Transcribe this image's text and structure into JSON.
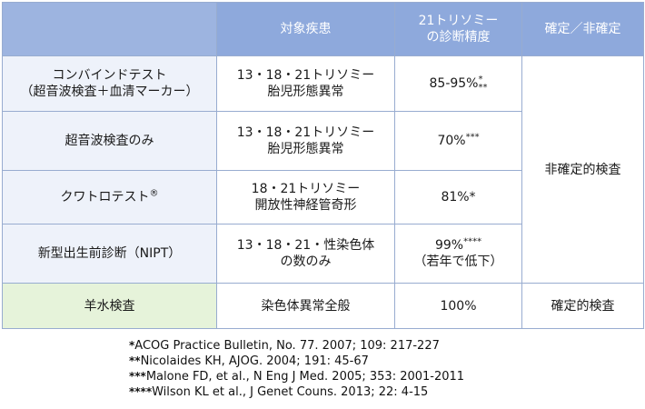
{
  "table": {
    "headers": {
      "corner": "",
      "target_disease": "対象疾患",
      "accuracy_line1": "21トリソミー",
      "accuracy_line2": "の診断精度",
      "definitive": "確定／非確定"
    },
    "rows": [
      {
        "test_line1": "コンバインドテスト",
        "test_line2": "（超音波検査＋血清マーカー）",
        "target_line1": "13・18・21トリソミー",
        "target_line2": "胎児形態異常",
        "accuracy_main": "85-95%",
        "accuracy_mark_top": "*",
        "accuracy_mark_bottom": "**"
      },
      {
        "test_line1": "超音波検査のみ",
        "target_line1": "13・18・21トリソミー",
        "target_line2": "胎児形態異常",
        "accuracy_main": "70%",
        "accuracy_mark": "***"
      },
      {
        "test_line1": "クワトロテスト",
        "test_mark": "®",
        "target_line1": "18・21トリソミー",
        "target_line2": "開放性神経管奇形",
        "accuracy_main": "81%*"
      },
      {
        "test_line1": "新型出生前診断（NIPT）",
        "target_line1": "13・18・21・性染色体",
        "target_line2": "の数のみ",
        "accuracy_main": "99%",
        "accuracy_mark": "****",
        "accuracy_line2": "（若年で低下）"
      },
      {
        "test_line1": "羊水検査",
        "target_line1": "染色体異常全般",
        "accuracy_main": "100%"
      }
    ],
    "non_definitive_label": "非確定的検査",
    "definitive_label": "確定的検査"
  },
  "references": [
    {
      "mark": "*",
      "text": "ACOG Practice Bulletin, No. 77. 2007; 109: 217-227"
    },
    {
      "mark": "**",
      "text": "Nicolaides KH, AJOG. 2004; 191: 45-67"
    },
    {
      "mark": "***",
      "text": "Malone FD, et al., N Eng J Med. 2005; 353: 2001-2011"
    },
    {
      "mark": "****",
      "text": "Wilson KL et al., J Genet Couns. 2013; 22: 4-15"
    }
  ],
  "colors": {
    "header_bg": "#8ea9dc",
    "row_header_bg": "#eef2fa",
    "definitive_row_bg": "#e6f3da",
    "border": "#98acd0"
  }
}
